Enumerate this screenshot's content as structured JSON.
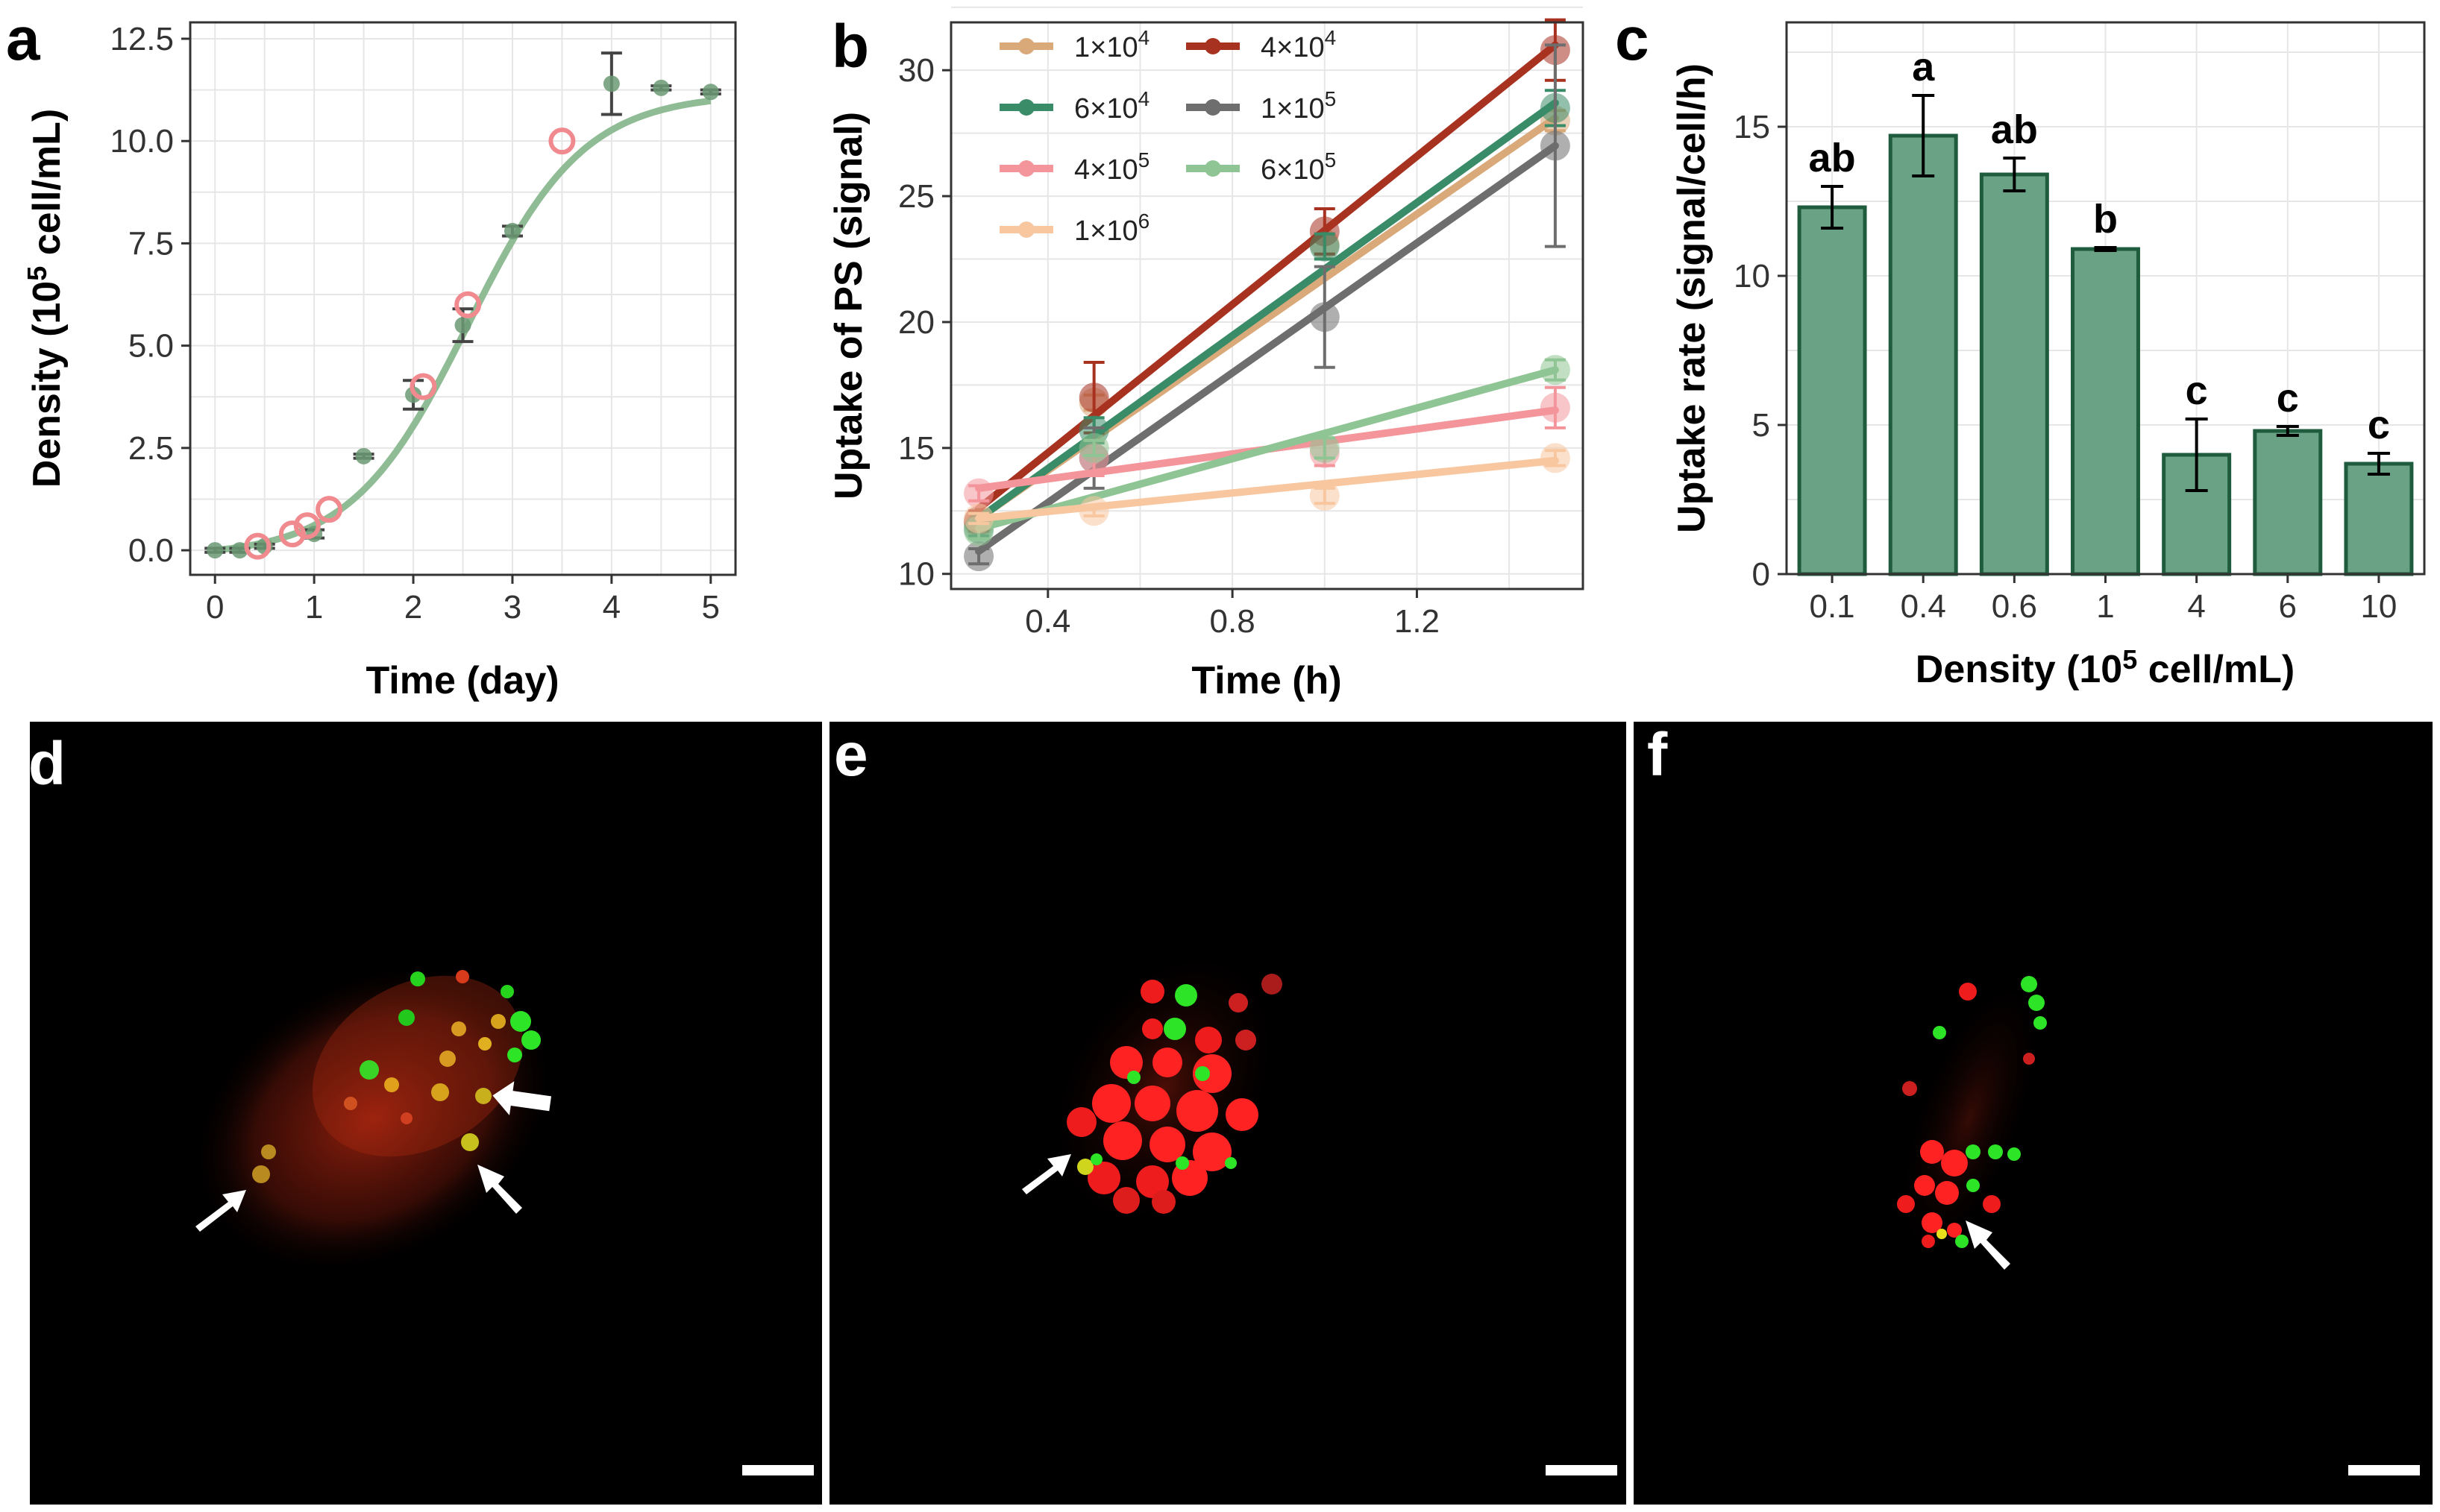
{
  "panels": {
    "a": {
      "letter": "a",
      "chart_data": {
        "type": "scatter",
        "xlabel": "Time (day)",
        "ylabel_parts": [
          "Density (10",
          "5",
          " cell/mL)"
        ],
        "xlim": [
          -0.25,
          5.25
        ],
        "ylim": [
          -0.6,
          12.9
        ],
        "x_ticks": [
          0,
          1,
          2,
          3,
          4,
          5
        ],
        "y_ticks": [
          0.0,
          2.5,
          5.0,
          7.5,
          10.0,
          12.5
        ],
        "y_tick_labels": [
          "0.0",
          "2.5",
          "5.0",
          "7.5",
          "10.0",
          "12.5"
        ],
        "observed": {
          "x": [
            0,
            0.25,
            0.5,
            1,
            1.5,
            2,
            2.5,
            3,
            4,
            4.5,
            5
          ],
          "y": [
            0.0,
            0.0,
            0.1,
            0.4,
            2.3,
            3.8,
            5.5,
            7.8,
            11.4,
            11.3,
            11.2
          ],
          "err": [
            0.05,
            0.05,
            0.05,
            0.1,
            0.05,
            0.35,
            0.4,
            0.12,
            0.75,
            0.05,
            0.05
          ],
          "color": "#6b9a74"
        },
        "highlighted": {
          "x": [
            0.43,
            0.78,
            0.93,
            1.15,
            2.1,
            2.55,
            3.5
          ],
          "y": [
            0.1,
            0.4,
            0.6,
            1.0,
            4.0,
            6.0,
            10.0
          ],
          "color": "#f08a8e"
        },
        "fit": {
          "model": "logistic",
          "K": 11.3,
          "r": 1.7,
          "t0": 2.55,
          "color": "#8fbc94"
        }
      }
    },
    "b": {
      "letter": "b",
      "chart_data": {
        "type": "line",
        "xlabel": "Time (h)",
        "ylabel": "Uptake of PS (signal)",
        "xlim": [
          0.19,
          1.56
        ],
        "ylim": [
          9.4,
          31.9
        ],
        "x_ticks": [
          0.4,
          0.8,
          1.2
        ],
        "x_tick_labels": [
          "0.4",
          "0.8",
          "1.2"
        ],
        "y_ticks": [
          10,
          15,
          20,
          25,
          30
        ],
        "x": [
          0.25,
          0.5,
          1.0,
          1.5
        ],
        "series": [
          {
            "name": "1×10^4",
            "base": "1×10",
            "exp": "4",
            "color": "#d9a97a",
            "values": [
              12.0,
              16.8,
              23.1,
              28.0
            ],
            "err": [
              0.3,
              0.3,
              0.4,
              0.4
            ],
            "fit": [
              12.2,
              28.1
            ]
          },
          {
            "name": "4×10^4",
            "base": "4×10",
            "exp": "4",
            "color": "#a83220",
            "values": [
              12.1,
              17.0,
              23.6,
              30.8
            ],
            "err": [
              0.4,
              1.4,
              0.9,
              1.2
            ],
            "fit": [
              12.6,
              31.0
            ]
          },
          {
            "name": "6×10^4",
            "base": "6×10",
            "exp": "4",
            "color": "#3a8c68",
            "values": [
              11.8,
              15.7,
              23.0,
              28.5
            ],
            "err": [
              0.3,
              0.5,
              0.5,
              0.7
            ],
            "fit": [
              12.2,
              28.7
            ]
          },
          {
            "name": "1×10^5",
            "base": "1×10",
            "exp": "5",
            "color": "#6e6e6e",
            "values": [
              10.7,
              14.6,
              20.2,
              27.0
            ],
            "err": [
              0.3,
              1.2,
              2.0,
              4.0
            ],
            "fit": [
              10.9,
              27.0
            ]
          },
          {
            "name": "4×10^5",
            "base": "4×10",
            "exp": "5",
            "color": "#f3959a",
            "values": [
              13.2,
              14.6,
              14.8,
              16.6
            ],
            "err": [
              0.3,
              0.7,
              0.5,
              0.8
            ],
            "fit": [
              13.4,
              16.5
            ]
          },
          {
            "name": "6×10^5",
            "base": "6×10",
            "exp": "5",
            "color": "#8fc494",
            "values": [
              11.7,
              15.0,
              15.0,
              18.1
            ],
            "err": [
              0.3,
              0.3,
              0.4,
              0.4
            ],
            "fit": [
              11.8,
              18.1
            ]
          },
          {
            "name": "1×10^6",
            "base": "1×10",
            "exp": "6",
            "color": "#f8c7a0",
            "values": [
              12.2,
              12.5,
              13.1,
              14.6
            ],
            "err": [
              0.2,
              0.2,
              0.3,
              0.3
            ],
            "fit": [
              12.2,
              14.5
            ]
          }
        ]
      }
    },
    "c": {
      "letter": "c",
      "chart_data": {
        "type": "bar",
        "xlabel_parts": [
          "Density (10",
          "5",
          " cell/mL)"
        ],
        "ylabel": "Uptake rate (signal/cell/h)",
        "ylim": [
          0,
          18.5
        ],
        "y_ticks": [
          0,
          5,
          10,
          15
        ],
        "categories": [
          "0.1",
          "0.4",
          "0.6",
          "1",
          "4",
          "6",
          "10"
        ],
        "values": [
          12.3,
          14.7,
          13.4,
          10.9,
          4.0,
          4.8,
          3.7
        ],
        "errors": [
          0.7,
          1.35,
          0.55,
          0.05,
          1.2,
          0.15,
          0.35
        ],
        "letters": [
          "ab",
          "a",
          "ab",
          "b",
          "c",
          "c",
          "c"
        ],
        "bar_color": "#6aa285",
        "bar_edge": "#1f5c3e"
      }
    },
    "d": {
      "letter": "d"
    },
    "e": {
      "letter": "e"
    },
    "f": {
      "letter": "f"
    }
  }
}
